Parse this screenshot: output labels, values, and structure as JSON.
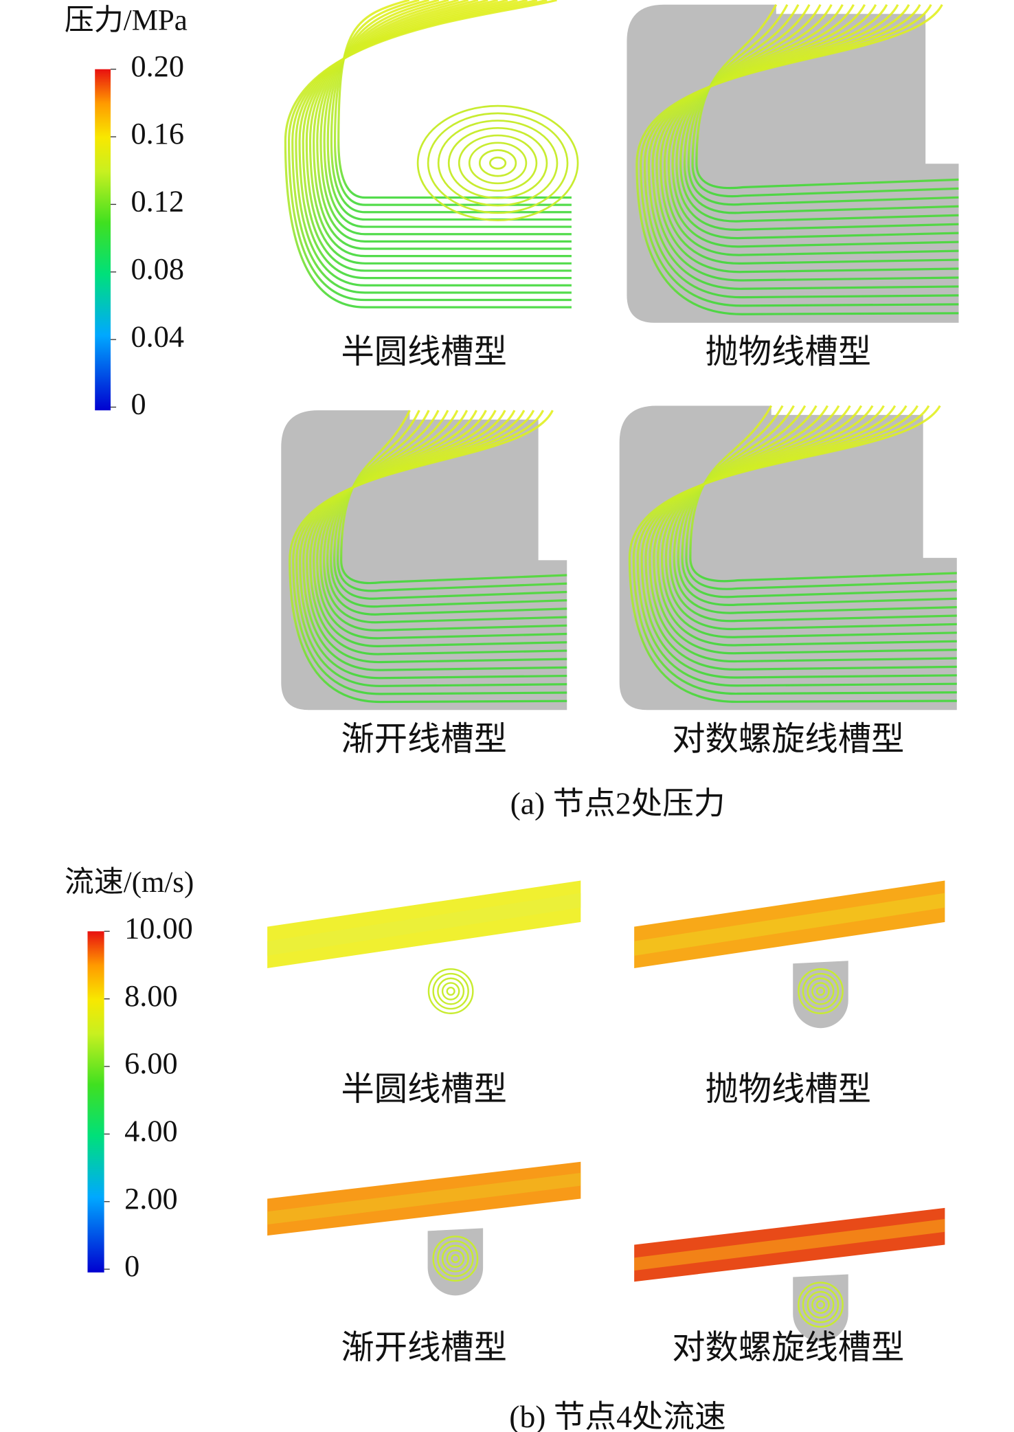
{
  "panel_a": {
    "colorbar": {
      "title": "压力/MPa",
      "ticks": [
        "0.20",
        "0.16",
        "0.12",
        "0.08",
        "0.04",
        "0"
      ]
    },
    "images": [
      "半圆线槽型",
      "抛物线槽型",
      "渐开线槽型",
      "对数螺旋线槽型"
    ],
    "caption": "(a) 节点2处压力"
  },
  "panel_b": {
    "colorbar": {
      "title": "流速/(m/s)",
      "ticks": [
        "10.00",
        "8.00",
        "6.00",
        "4.00",
        "2.00",
        "0"
      ]
    },
    "images": [
      "半圆线槽型",
      "抛物线槽型",
      "渐开线槽型",
      "对数螺旋线槽型"
    ],
    "caption": "(b) 节点4处流速"
  }
}
